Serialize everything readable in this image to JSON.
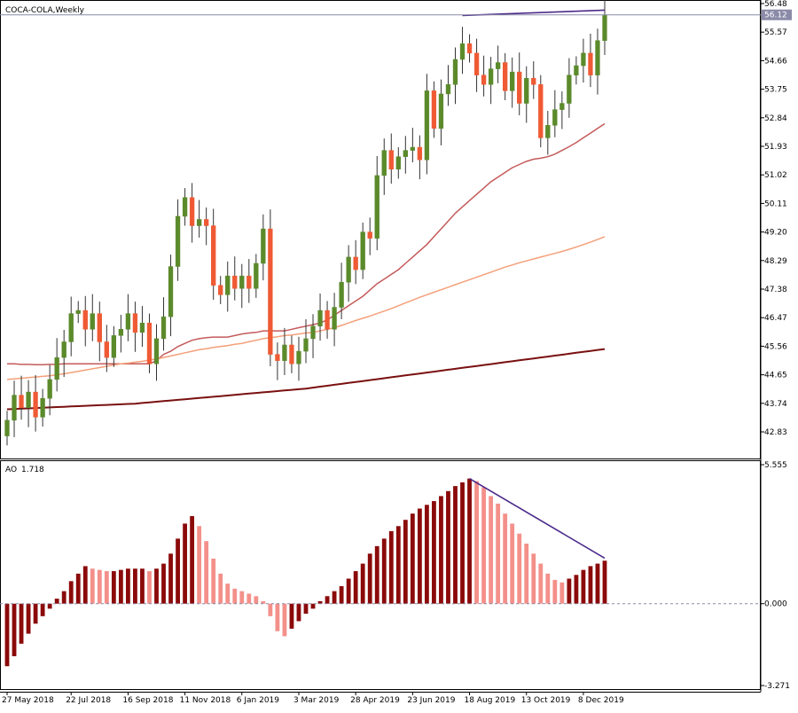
{
  "window": {
    "title": "COCA-COLA,Weekly",
    "ao_label": "AO",
    "ao_value": "1.718"
  },
  "colors": {
    "bull_candle": "#5b8a2b",
    "bear_candle": "#ef5a34",
    "ma_fast": "#c45a5a",
    "ma_mid": "#f4a07a",
    "ma_slow": "#7a1010",
    "ao_up": "#8b0a0a",
    "ao_down": "#f4908a",
    "divergence_line": "#4b2a8a",
    "current_price_line": "#8a8aa8"
  },
  "chart_data": [
    {
      "type": "candlestick",
      "title": "COCA-COLA,Weekly",
      "price_axis_ticks": [
        "56.48",
        "55.57",
        "54.66",
        "53.75",
        "52.84",
        "51.93",
        "51.02",
        "50.11",
        "49.20",
        "48.29",
        "47.38",
        "46.47",
        "45.56",
        "44.65",
        "43.74",
        "42.83"
      ],
      "current_price": "56.12",
      "ylim": [
        42.2,
        56.6
      ],
      "x_tick_labels": [
        {
          "bar": 0,
          "label": "27 May 2018"
        },
        {
          "bar": 9,
          "label": "22 Jul 2018"
        },
        {
          "bar": 17,
          "label": "16 Sep 2018"
        },
        {
          "bar": 25,
          "label": "11 Nov 2018"
        },
        {
          "bar": 33,
          "label": "6 Jan 2019"
        },
        {
          "bar": 41,
          "label": "3 Mar 2019"
        },
        {
          "bar": 49,
          "label": "28 Apr 2019"
        },
        {
          "bar": 57,
          "label": "23 Jun 2019"
        },
        {
          "bar": 65,
          "label": "18 Aug 2019"
        },
        {
          "bar": 73,
          "label": "13 Oct 2019"
        },
        {
          "bar": 81,
          "label": "8 Dec 2019"
        }
      ],
      "closes": [
        43.2,
        44.0,
        43.6,
        44.1,
        43.3,
        43.9,
        44.5,
        45.2,
        45.7,
        46.6,
        46.7,
        46.1,
        46.6,
        45.7,
        45.2,
        45.9,
        46.1,
        46.6,
        46.0,
        46.3,
        45.0,
        45.8,
        46.5,
        48.1,
        49.7,
        50.3,
        49.4,
        49.6,
        49.4,
        47.5,
        47.2,
        47.8,
        47.4,
        47.8,
        47.4,
        48.2,
        49.3,
        45.3,
        45.1,
        45.6,
        45.0,
        45.4,
        45.8,
        46.2,
        46.7,
        46.1,
        46.8,
        47.6,
        48.4,
        48.0,
        49.2,
        49.0,
        51.0,
        51.8,
        51.2,
        51.6,
        51.8,
        51.9,
        51.5,
        53.7,
        52.5,
        53.6,
        53.9,
        54.7,
        55.2,
        54.9,
        54.2,
        53.9,
        54.4,
        54.6,
        53.7,
        54.3,
        53.3,
        54.1,
        53.9,
        52.2,
        52.6,
        53.1,
        53.3,
        54.2,
        54.5,
        54.9,
        54.2,
        55.3,
        56.12
      ],
      "series": [
        {
          "name": "MA fast",
          "values": [
            45.0,
            45.0,
            44.98,
            44.98,
            44.97,
            44.97,
            44.98,
            44.98,
            45.0,
            45.0,
            45.0,
            45.0,
            45.0,
            45.0,
            45.0,
            45.0,
            45.0,
            45.0,
            45.0,
            45.0,
            45.0,
            45.1,
            45.3,
            45.4,
            45.55,
            45.65,
            45.75,
            45.8,
            45.83,
            45.85,
            45.85,
            45.85,
            45.9,
            45.95,
            45.98,
            46.0,
            46.05,
            46.05,
            46.05,
            46.05,
            46.1,
            46.15,
            46.2,
            46.25,
            46.3,
            46.4,
            46.55,
            46.7,
            46.85,
            47.0,
            47.15,
            47.35,
            47.55,
            47.7,
            47.85,
            48.0,
            48.2,
            48.4,
            48.6,
            48.8,
            49.05,
            49.3,
            49.55,
            49.8,
            50.0,
            50.2,
            50.4,
            50.6,
            50.8,
            50.95,
            51.1,
            51.25,
            51.35,
            51.45,
            51.52,
            51.55,
            51.6,
            51.68,
            51.8,
            51.92,
            52.05,
            52.2,
            52.35,
            52.5,
            52.65
          ]
        },
        {
          "name": "MA mid",
          "values": [
            44.5,
            44.52,
            44.54,
            44.56,
            44.58,
            44.6,
            44.62,
            44.65,
            44.68,
            44.72,
            44.76,
            44.8,
            44.84,
            44.88,
            44.92,
            44.96,
            45.0,
            45.02,
            45.05,
            45.08,
            45.12,
            45.15,
            45.2,
            45.25,
            45.3,
            45.35,
            45.4,
            45.45,
            45.48,
            45.52,
            45.55,
            45.58,
            45.62,
            45.65,
            45.7,
            45.75,
            45.8,
            45.83,
            45.86,
            45.9,
            45.92,
            45.95,
            45.98,
            46.0,
            46.05,
            46.1,
            46.15,
            46.22,
            46.3,
            46.38,
            46.45,
            46.52,
            46.6,
            46.68,
            46.76,
            46.85,
            46.94,
            47.03,
            47.12,
            47.2,
            47.28,
            47.36,
            47.44,
            47.52,
            47.6,
            47.68,
            47.76,
            47.84,
            47.92,
            48.0,
            48.08,
            48.15,
            48.22,
            48.28,
            48.34,
            48.4,
            48.46,
            48.52,
            48.58,
            48.65,
            48.72,
            48.8,
            48.88,
            48.96,
            49.05
          ]
        },
        {
          "name": "MA slow",
          "values": [
            43.55,
            43.56,
            43.57,
            43.58,
            43.59,
            43.6,
            43.61,
            43.62,
            43.63,
            43.64,
            43.65,
            43.66,
            43.67,
            43.68,
            43.69,
            43.7,
            43.71,
            43.72,
            43.73,
            43.75,
            43.77,
            43.79,
            43.81,
            43.83,
            43.85,
            43.87,
            43.89,
            43.91,
            43.93,
            43.95,
            43.97,
            43.99,
            44.01,
            44.03,
            44.05,
            44.07,
            44.09,
            44.11,
            44.13,
            44.15,
            44.17,
            44.19,
            44.21,
            44.24,
            44.27,
            44.3,
            44.33,
            44.36,
            44.39,
            44.42,
            44.45,
            44.48,
            44.51,
            44.54,
            44.57,
            44.6,
            44.63,
            44.66,
            44.69,
            44.72,
            44.75,
            44.78,
            44.81,
            44.84,
            44.87,
            44.9,
            44.93,
            44.96,
            44.99,
            45.02,
            45.05,
            45.08,
            45.11,
            45.14,
            45.17,
            45.2,
            45.23,
            45.26,
            45.29,
            45.32,
            45.35,
            45.38,
            45.41,
            45.44,
            45.47
          ]
        }
      ]
    },
    {
      "type": "bar",
      "title": "AO 1.718",
      "value_axis_ticks": [
        "5.555",
        "0.000",
        "-3.271"
      ],
      "ylim": [
        -3.271,
        5.555
      ],
      "values": [
        -2.5,
        -2.1,
        -1.6,
        -1.2,
        -0.8,
        -0.5,
        -0.2,
        0.2,
        0.5,
        0.9,
        1.2,
        1.5,
        1.4,
        1.35,
        1.3,
        1.3,
        1.35,
        1.4,
        1.4,
        1.4,
        1.3,
        1.4,
        1.6,
        2.0,
        2.6,
        3.2,
        3.5,
        3.1,
        2.5,
        1.8,
        1.2,
        0.8,
        0.6,
        0.5,
        0.4,
        0.3,
        0.1,
        -0.5,
        -1.1,
        -1.3,
        -1.0,
        -0.7,
        -0.4,
        -0.2,
        0.1,
        0.3,
        0.5,
        0.7,
        1.0,
        1.3,
        1.6,
        2.0,
        2.3,
        2.6,
        2.9,
        3.1,
        3.35,
        3.6,
        3.8,
        3.95,
        4.1,
        4.3,
        4.5,
        4.7,
        4.85,
        5.0,
        4.9,
        4.65,
        4.3,
        4.0,
        3.6,
        3.2,
        2.8,
        2.4,
        2.0,
        1.6,
        1.2,
        0.95,
        0.85,
        1.0,
        1.15,
        1.35,
        1.5,
        1.6,
        1.718
      ]
    }
  ]
}
